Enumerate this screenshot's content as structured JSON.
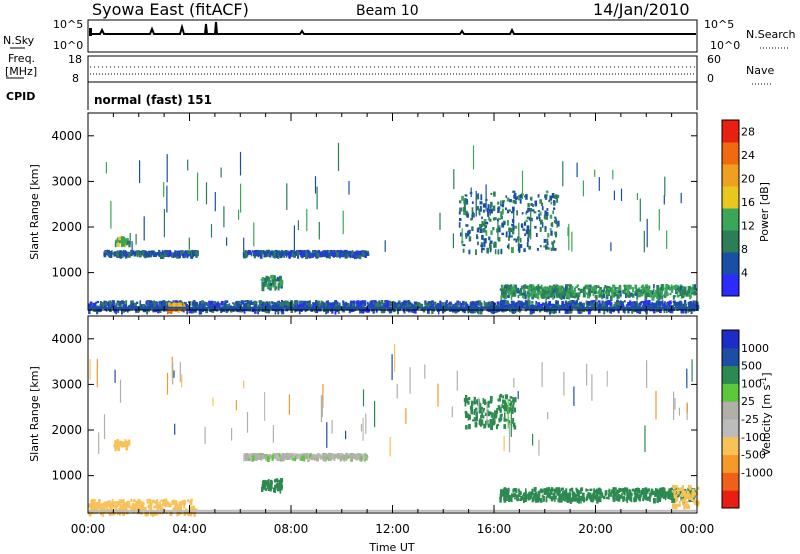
{
  "header": {
    "site": "Syowa East (fitACF)",
    "beam": "Beam 10",
    "date": "14/Jan/2010"
  },
  "top_panels": {
    "nsky_label": "N.Sky",
    "nsky_ticks": [
      "10^5",
      "10^0"
    ],
    "nsearch_label": "N.Search",
    "nsearch_ticks": [
      "10^5",
      "10^0"
    ],
    "freq_label": [
      "Freq.",
      "[MHz]"
    ],
    "freq_ticks": [
      "18",
      "8"
    ],
    "nave_label": "Nave",
    "nave_ticks": [
      "60",
      "0"
    ],
    "cpid_label": "CPID",
    "cpid_value": "normal (fast) 151"
  },
  "colors": {
    "power_scale": [
      "#2b2bff",
      "#1a4fa6",
      "#2c7d58",
      "#3aa658",
      "#e8c81e",
      "#f0a020",
      "#f06a10",
      "#e82010"
    ],
    "velocity_scale": [
      "#e81e14",
      "#f06018",
      "#f49a28",
      "#f8c258",
      "#bcbcbc",
      "#b0b0a8",
      "#5ec83c",
      "#2c8a50",
      "#1e4ea4",
      "#1c2cc8"
    ]
  },
  "chart_data": [
    {
      "type": "heatmap",
      "title": "Syowa East (fitACF) Beam 10 14/Jan/2010",
      "xlabel": "Time UT",
      "ylabel": "Slant Range [km]",
      "xlim": [
        "00:00",
        "24:00"
      ],
      "ylim": [
        180,
        4500
      ],
      "xticks": [
        "00:00",
        "04:00",
        "08:00",
        "12:00",
        "16:00",
        "20:00",
        "00:00"
      ],
      "yticks": [
        1000,
        2000,
        3000,
        4000
      ],
      "colorbar": {
        "label": "Power [dB]",
        "ticks": [
          4,
          8,
          12,
          16,
          20,
          24,
          28
        ],
        "range": [
          0,
          30
        ]
      },
      "features": [
        {
          "t0": 1.0,
          "t1": 1.6,
          "r0": 1650,
          "r1": 1800,
          "power": 13
        },
        {
          "t0": 0.6,
          "t1": 4.3,
          "r0": 1420,
          "r1": 1500,
          "power": 6
        },
        {
          "t0": 6.1,
          "t1": 11.0,
          "r0": 1420,
          "r1": 1500,
          "power": 6
        },
        {
          "t0": 6.8,
          "t1": 7.6,
          "r0": 700,
          "r1": 950,
          "power": 10
        },
        {
          "t0": 14.6,
          "t1": 18.5,
          "r0": 1500,
          "r1": 2800,
          "power": 8
        },
        {
          "t0": 16.2,
          "t1": 23.9,
          "r0": 500,
          "r1": 750,
          "power": 11
        },
        {
          "t0": 0.0,
          "t1": 24.0,
          "r0": 200,
          "r1": 400,
          "power": 6
        },
        {
          "t0": 3.1,
          "t1": 3.8,
          "r0": 200,
          "r1": 350,
          "power": 21
        }
      ]
    },
    {
      "type": "heatmap",
      "xlabel": "Time UT",
      "ylabel": "Slant Range [km]",
      "xlim": [
        "00:00",
        "24:00"
      ],
      "ylim": [
        180,
        4500
      ],
      "xticks": [
        "00:00",
        "04:00",
        "08:00",
        "12:00",
        "16:00",
        "20:00",
        "00:00"
      ],
      "yticks": [
        1000,
        2000,
        3000,
        4000
      ],
      "colorbar": {
        "label": "Velocity [m s^-1]",
        "ticks": [
          "1000",
          "500",
          "100",
          "25",
          "-25",
          "-100",
          "-500",
          "-1000"
        ]
      },
      "features": [
        {
          "t0": 1.0,
          "t1": 1.6,
          "r0": 1650,
          "r1": 1800,
          "velocity": -300
        },
        {
          "t0": 6.1,
          "t1": 11.0,
          "r0": 1420,
          "r1": 1500,
          "velocity": 0
        },
        {
          "t0": 6.8,
          "t1": 7.6,
          "r0": 700,
          "r1": 950,
          "velocity": 150
        },
        {
          "t0": 14.8,
          "t1": 16.8,
          "r0": 2100,
          "r1": 2800,
          "velocity": 200
        },
        {
          "t0": 16.2,
          "t1": 23.9,
          "r0": 500,
          "r1": 750,
          "velocity": 250
        },
        {
          "t0": 0.0,
          "t1": 4.2,
          "r0": 200,
          "r1": 500,
          "velocity": -200
        },
        {
          "t0": 23.0,
          "t1": 24.0,
          "r0": 350,
          "r1": 800,
          "velocity": -300
        }
      ]
    }
  ]
}
